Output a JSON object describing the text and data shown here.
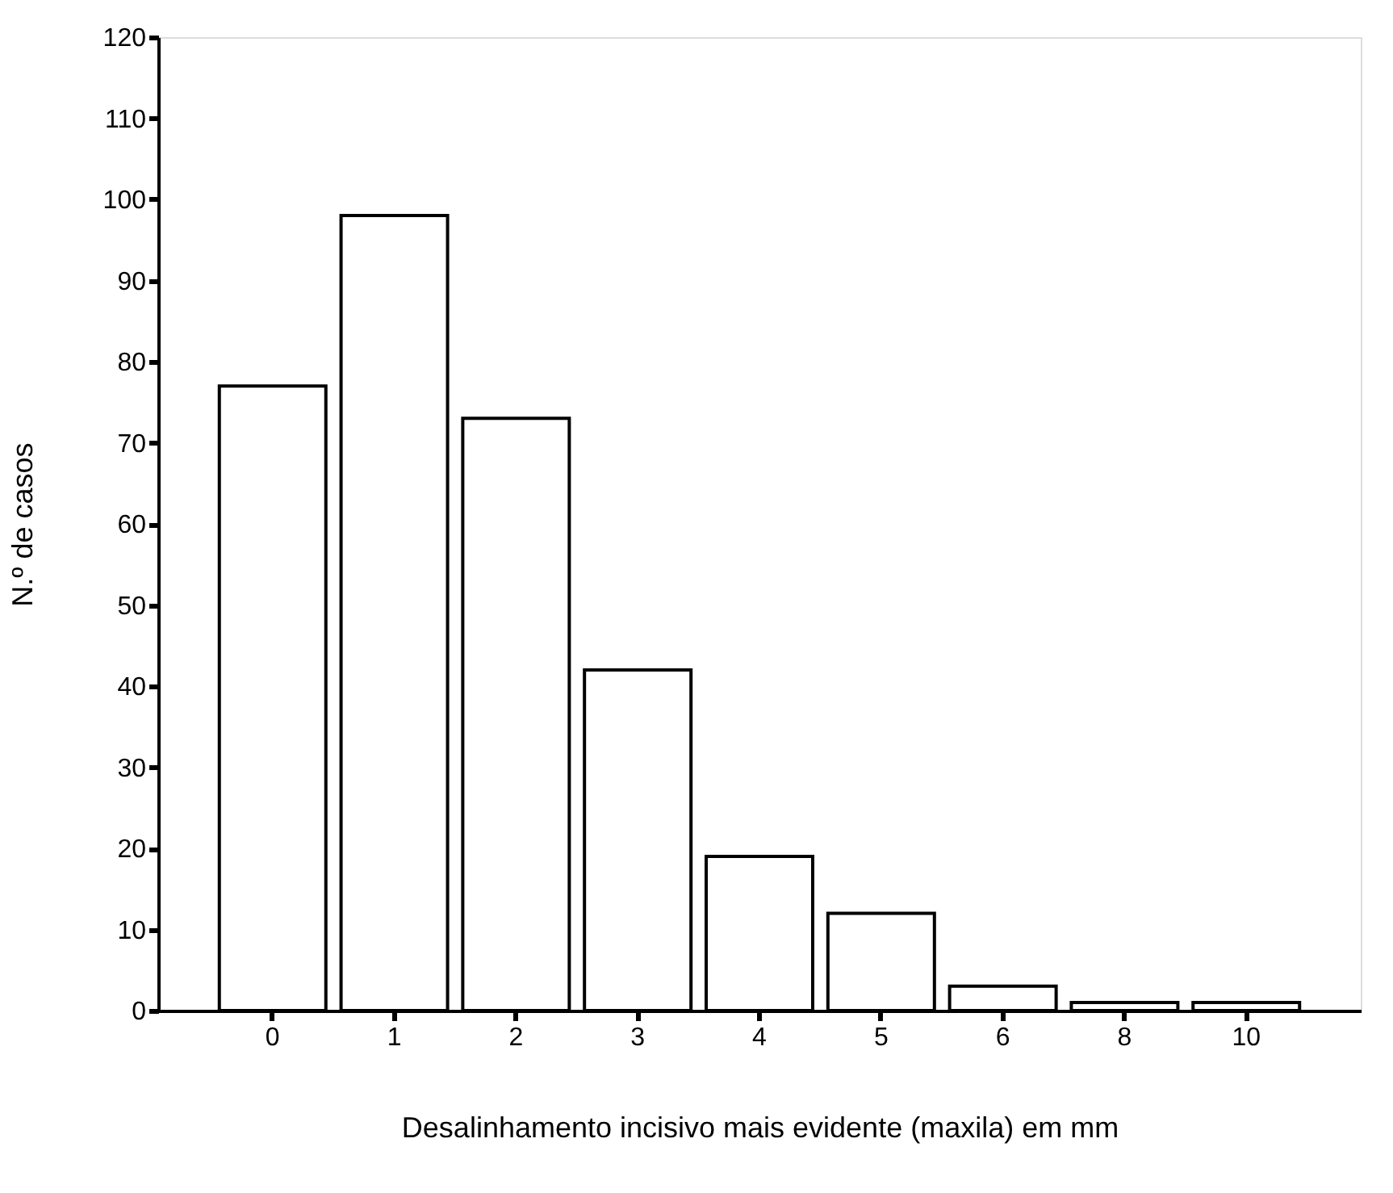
{
  "chart_data": {
    "type": "bar",
    "xlabel": "Desalinhamento incisivo mais evidente (maxila) em mm",
    "ylabel": "N.º de casos",
    "categories": [
      "0",
      "1",
      "2",
      "3",
      "4",
      "5",
      "6",
      "8",
      "10"
    ],
    "values": [
      77,
      98,
      73,
      42,
      19,
      12,
      3,
      1,
      1
    ],
    "color": "#ffffff",
    "ylim": [
      0,
      120
    ],
    "yticks": [
      0,
      10,
      20,
      30,
      40,
      50,
      60,
      70,
      80,
      90,
      100,
      110,
      120
    ],
    "grid": false
  }
}
